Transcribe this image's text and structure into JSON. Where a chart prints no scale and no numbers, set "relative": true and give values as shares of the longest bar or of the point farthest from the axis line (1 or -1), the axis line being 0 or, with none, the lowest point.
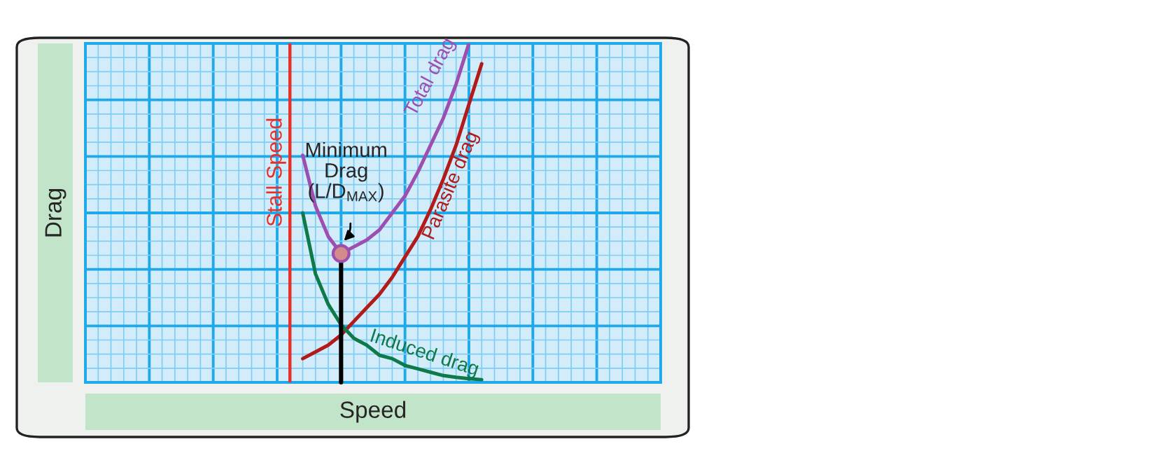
{
  "chart_data": {
    "type": "line",
    "relative": true,
    "xlabel": "Speed",
    "ylabel": "Drag",
    "grid": true,
    "legend": false,
    "tick_labels": false,
    "marker": "none",
    "categories": [
      null,
      null,
      null,
      null,
      null,
      null,
      null,
      null,
      null,
      null,
      null,
      null,
      null,
      null,
      null,
      null,
      null,
      null,
      null,
      null,
      null,
      null,
      null,
      null,
      null,
      null,
      null,
      null,
      null,
      null,
      null,
      null,
      null,
      null,
      null,
      null,
      null,
      null,
      null,
      null,
      null,
      null,
      null,
      null,
      null,
      null
    ],
    "series": [
      {
        "name": "Total drag",
        "color": "#9c4fb0",
        "values": [
          null,
          null,
          null,
          null,
          null,
          null,
          null,
          null,
          null,
          null,
          null,
          null,
          null,
          null,
          null,
          null,
          null,
          0.67,
          0.52,
          0.43,
          0.38,
          0.4,
          0.42,
          0.45,
          0.5,
          0.55,
          0.62,
          0.7,
          0.78,
          0.88,
          1.0,
          null,
          null,
          null,
          null,
          null,
          null,
          null,
          null,
          null,
          null,
          null,
          null,
          null,
          null,
          null
        ]
      },
      {
        "name": "Parasite drag",
        "color": "#b31b1b",
        "values": [
          null,
          null,
          null,
          null,
          null,
          null,
          null,
          null,
          null,
          null,
          null,
          null,
          null,
          null,
          null,
          null,
          null,
          0.07,
          0.09,
          0.11,
          0.14,
          0.18,
          0.22,
          0.26,
          0.31,
          0.37,
          0.43,
          0.51,
          0.6,
          0.7,
          0.82,
          0.94,
          null,
          null,
          null,
          null,
          null,
          null,
          null,
          null,
          null,
          null,
          null,
          null,
          null,
          null
        ]
      },
      {
        "name": "Induced drag",
        "color": "#0e7a4a",
        "values": [
          null,
          null,
          null,
          null,
          null,
          null,
          null,
          null,
          null,
          null,
          null,
          null,
          null,
          null,
          null,
          null,
          null,
          0.5,
          0.32,
          0.23,
          0.17,
          0.13,
          0.11,
          0.08,
          0.07,
          0.05,
          0.04,
          0.03,
          0.02,
          0.015,
          0.011,
          0.008,
          null,
          null,
          null,
          null,
          null,
          null,
          null,
          null,
          null,
          null,
          null,
          null,
          null,
          null
        ]
      }
    ],
    "annotations": [
      "Stall Speed",
      {
        "text": "Minimum Drag (L/D$_{MAX}$)",
        "y": 0.38
      }
    ]
  }
}
